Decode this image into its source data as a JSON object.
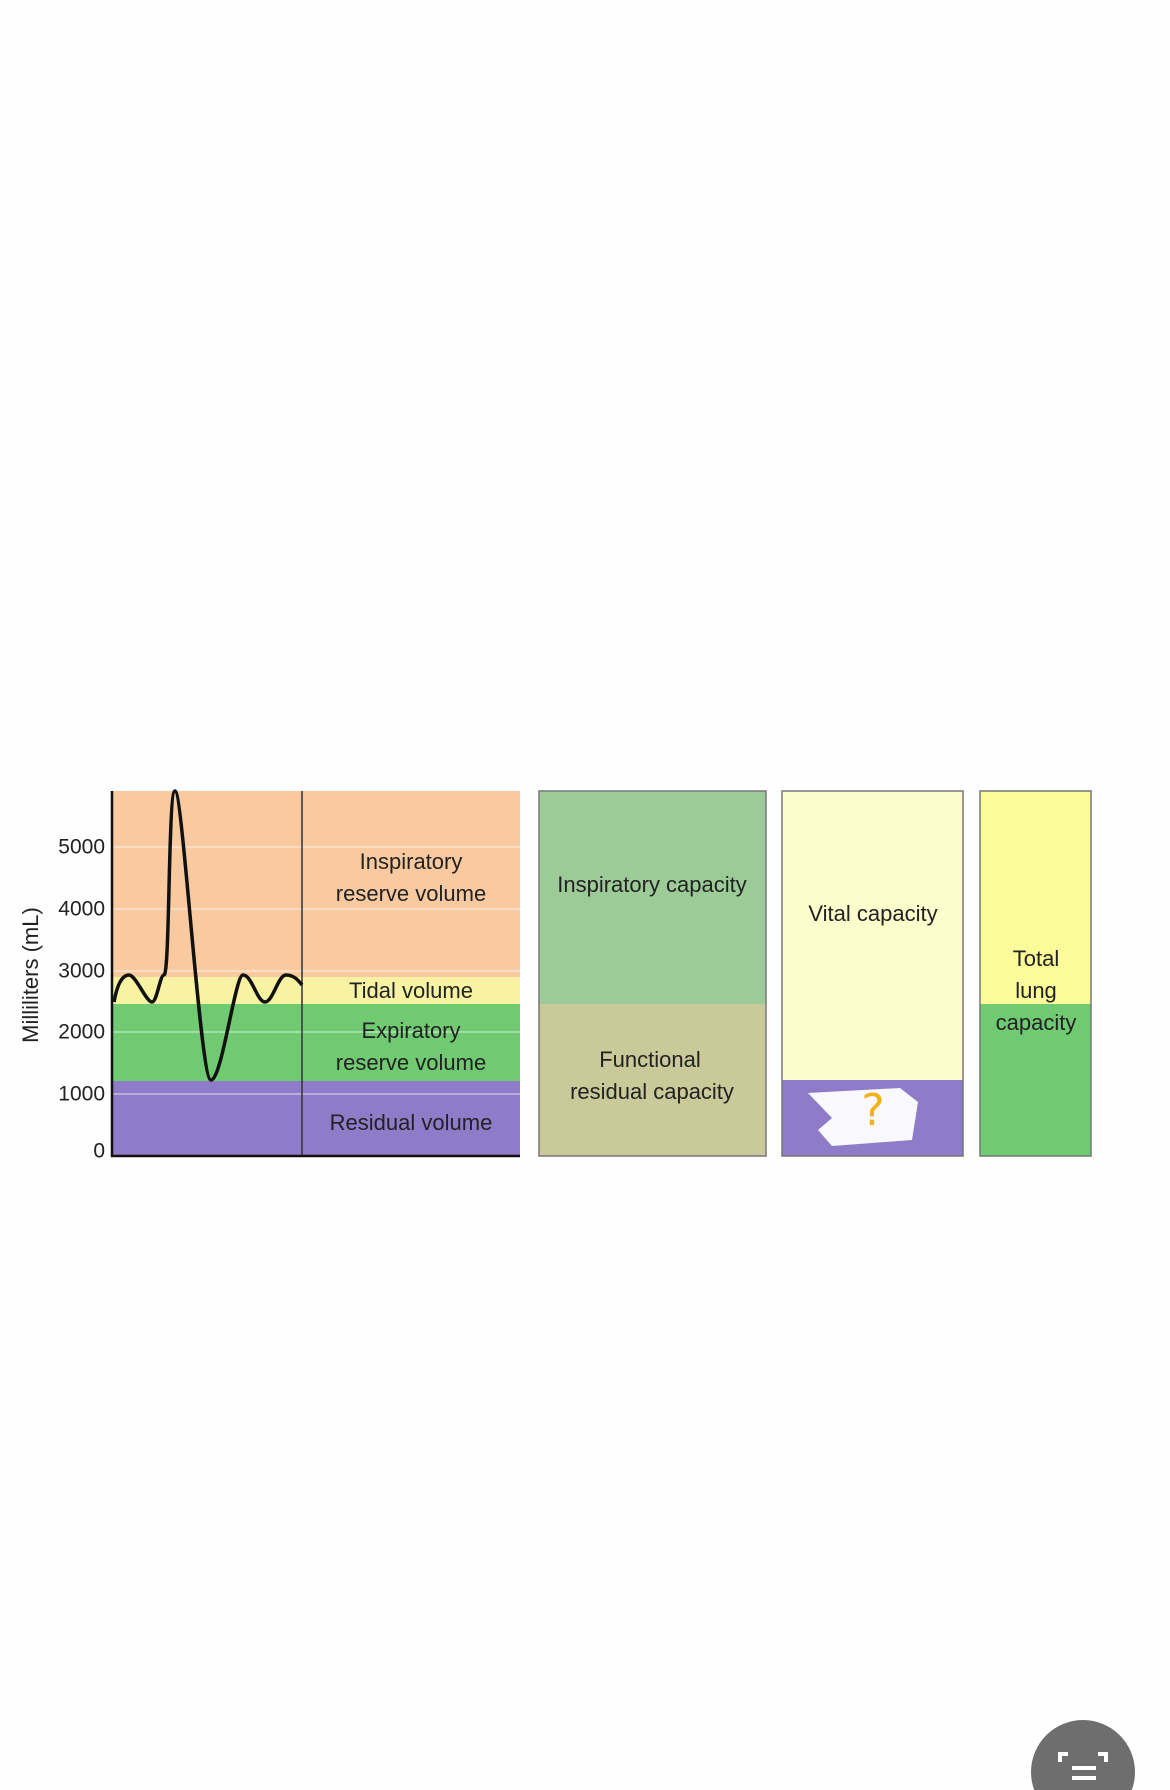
{
  "axis": {
    "label": "Milliliters (mL)",
    "ticks": [
      "5000",
      "4000",
      "3000",
      "2000",
      "1000",
      "0"
    ]
  },
  "volumes": {
    "inspiratory_reserve": [
      "Inspiratory",
      "reserve volume"
    ],
    "tidal": "Tidal volume",
    "expiratory_reserve": [
      "Expiratory",
      "reserve volume"
    ],
    "residual": "Residual volume"
  },
  "capacities": {
    "inspiratory": "Inspiratory capacity",
    "functional_residual": [
      "Functional",
      "residual capacity"
    ],
    "vital": "Vital capacity",
    "unknown": "?",
    "total": [
      "Total",
      "lung",
      "capacity"
    ]
  }
}
